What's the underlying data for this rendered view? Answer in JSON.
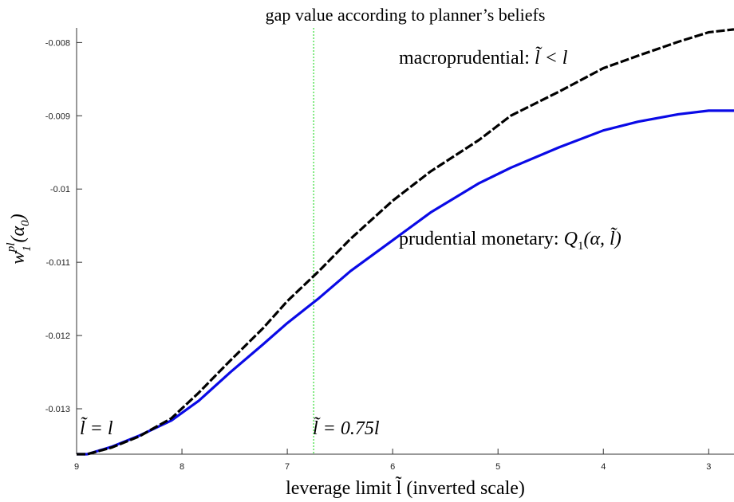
{
  "chart_data": {
    "type": "line",
    "title": "gap value according to planner’s beliefs",
    "xlabel": "leverage limit l̃ (inverted scale)",
    "ylabel": [
      "w",
      "1",
      "pl",
      "(α",
      "0",
      ")"
    ],
    "x": [
      9.0,
      8.9,
      8.67,
      8.41,
      8.1,
      7.84,
      7.54,
      7.23,
      7.0,
      6.7,
      6.4,
      6.0,
      5.64,
      5.18,
      4.88,
      4.42,
      4.0,
      3.67,
      3.29,
      3.0,
      2.76
    ],
    "series": [
      {
        "name": "macroprudential",
        "color": "#000000",
        "dashed": true,
        "values": [
          -0.01362,
          -0.01362,
          -0.01353,
          -0.01338,
          -0.01313,
          -0.01278,
          -0.01234,
          -0.0119,
          -0.01153,
          -0.01112,
          -0.01068,
          -0.01016,
          -0.00976,
          -0.00933,
          -0.009,
          -0.00867,
          -0.00835,
          -0.00818,
          -0.00799,
          -0.00786,
          -0.00782
        ]
      },
      {
        "name": "prudential monetary",
        "color": "#0a0ae6",
        "dashed": false,
        "values": [
          -0.01362,
          -0.01362,
          -0.01352,
          -0.01337,
          -0.01316,
          -0.01289,
          -0.0125,
          -0.01212,
          -0.01183,
          -0.01149,
          -0.01112,
          -0.0107,
          -0.01032,
          -0.00992,
          -0.00971,
          -0.00943,
          -0.0092,
          -0.00908,
          -0.00898,
          -0.00893,
          -0.00893
        ]
      }
    ],
    "xlim": [
      2.76,
      9
    ],
    "x_reversed": true,
    "xticks": [
      9,
      8,
      7,
      6,
      5,
      4,
      3
    ],
    "ylim": [
      -0.01362,
      -0.0078
    ],
    "yticks": [
      -0.013,
      -0.012,
      -0.011,
      -0.01,
      -0.009,
      -0.008
    ],
    "vline": {
      "value": 6.75,
      "color": "#33dd33"
    },
    "annotations": {
      "macro": [
        "macroprudential: ",
        "l̃ < l"
      ],
      "monetary": [
        "prudential monetary: ",
        "Q",
        "1",
        "(α, l̃)"
      ],
      "left": "l̃ = l",
      "mid": "l̃ = 0.75l"
    },
    "grid": false
  }
}
